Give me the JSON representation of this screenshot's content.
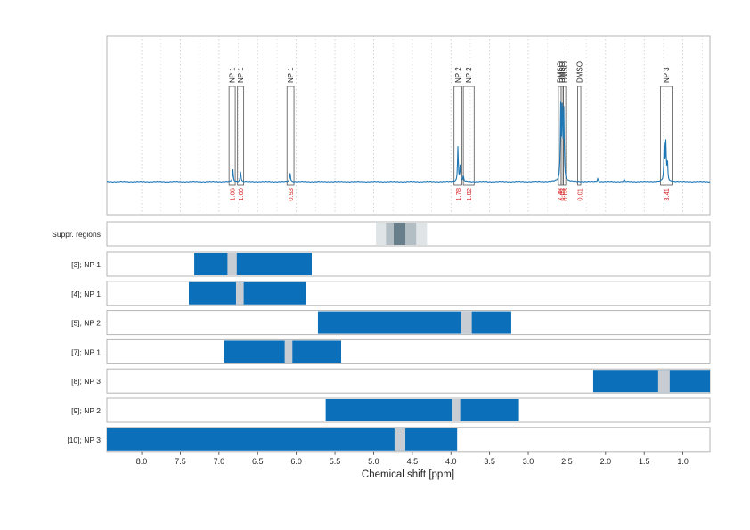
{
  "chart_data": {
    "type": "line",
    "xlabel": "Chemical shift [ppm]",
    "xlim": [
      8.45,
      0.65
    ],
    "x_ticks": [
      8.0,
      7.5,
      7.0,
      6.5,
      6.0,
      5.5,
      5.0,
      4.5,
      4.0,
      3.5,
      3.0,
      2.5,
      2.0,
      1.5,
      1.0
    ],
    "x_tick_labels": [
      "8.0",
      "7.5",
      "7.0",
      "6.5",
      "6.0",
      "5.5",
      "5.0",
      "4.5",
      "4.0",
      "3.5",
      "3.0",
      "2.5",
      "2.0",
      "1.5",
      "1.0"
    ],
    "grid": "dotted vertical",
    "spectrum": {
      "color": "#1f77b4",
      "peaks": [
        {
          "ppm": 6.82,
          "height": 0.11
        },
        {
          "ppm": 6.72,
          "height": 0.1
        },
        {
          "ppm": 6.08,
          "height": 0.09
        },
        {
          "ppm": 3.91,
          "height": 0.32
        },
        {
          "ppm": 3.88,
          "height": 0.15
        },
        {
          "ppm": 3.84,
          "height": 0.05
        },
        {
          "ppm": 2.58,
          "height": 0.66
        },
        {
          "ppm": 2.56,
          "height": 0.71
        },
        {
          "ppm": 2.54,
          "height": 0.62
        },
        {
          "ppm": 2.1,
          "height": 0.03
        },
        {
          "ppm": 1.76,
          "height": 0.02
        },
        {
          "ppm": 1.24,
          "height": 0.37
        },
        {
          "ppm": 1.22,
          "height": 0.34
        },
        {
          "ppm": 1.2,
          "height": 0.18
        }
      ]
    },
    "peak_annotations": [
      {
        "label": "NP 1",
        "from": 6.87,
        "to": 6.79,
        "integral": "1.06"
      },
      {
        "label": "NP 1",
        "from": 6.76,
        "to": 6.68,
        "integral": "1.00"
      },
      {
        "label": "NP 1",
        "from": 6.12,
        "to": 6.03,
        "integral": "0.93"
      },
      {
        "label": "NP 2",
        "from": 3.96,
        "to": 3.86,
        "integral": "1.78"
      },
      {
        "label": "NP 2",
        "from": 3.84,
        "to": 3.7,
        "integral": "1.82"
      },
      {
        "label": "DMSO",
        "from": 2.61,
        "to": 2.575,
        "integral": "7.48"
      },
      {
        "label": "DMSO",
        "from": 2.575,
        "to": 2.55,
        "integral": "0.03"
      },
      {
        "label": "DMSO",
        "from": 2.545,
        "to": 2.515,
        "integral": "0.03"
      },
      {
        "label": "DMSO",
        "from": 2.36,
        "to": 2.32,
        "integral": "0.01"
      },
      {
        "label": "NP 3",
        "from": 1.29,
        "to": 1.14,
        "integral": "3.41"
      }
    ],
    "suppression_regions": {
      "label": "Suppr. regions",
      "bands": [
        {
          "from": 4.97,
          "to": 4.31,
          "opacity": 0.18
        },
        {
          "from": 4.84,
          "to": 4.45,
          "opacity": 0.3
        },
        {
          "from": 4.74,
          "to": 4.59,
          "opacity": 0.75
        }
      ]
    },
    "rows": [
      {
        "label": "[3]; NP 1",
        "from": 7.32,
        "to": 5.8,
        "gap_from": 6.89,
        "gap_to": 6.77
      },
      {
        "label": "[4]; NP 1",
        "from": 7.39,
        "to": 5.87,
        "gap_from": 6.78,
        "gap_to": 6.68
      },
      {
        "label": "[5]; NP 2",
        "from": 5.72,
        "to": 3.22,
        "gap_from": 3.87,
        "gap_to": 3.73
      },
      {
        "label": "[7]; NP 1",
        "from": 6.93,
        "to": 5.42,
        "gap_from": 6.15,
        "gap_to": 6.05
      },
      {
        "label": "[8]; NP 3",
        "from": 2.16,
        "to": 0.65,
        "gap_from": 1.32,
        "gap_to": 1.17
      },
      {
        "label": "[9]; NP 2",
        "from": 5.62,
        "to": 3.12,
        "gap_from": 3.98,
        "gap_to": 3.88
      },
      {
        "label": "[10]; NP 3",
        "from": 8.45,
        "to": 3.92,
        "gap_from": 4.73,
        "gap_to": 4.59
      }
    ],
    "colors": {
      "bar": "#0b6fba",
      "gap": "#c7cdd2",
      "suppression": "#4f6877",
      "integral_text": "#d62728",
      "spectrum": "#1f77b4",
      "frame": "#b5b5b5",
      "grid": "#c8c8c8"
    }
  }
}
